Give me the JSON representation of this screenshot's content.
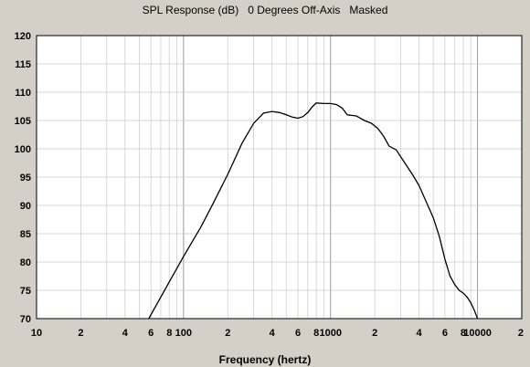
{
  "chart_data": {
    "type": "line",
    "title": "SPL Response (dB)   0 Degrees Off-Axis   Masked",
    "xlabel": "Frequency (hertz)",
    "ylabel": "",
    "x_scale": "log",
    "xlim": [
      10,
      20000
    ],
    "ylim": [
      70,
      120
    ],
    "grid": true,
    "y_ticks": [
      "120",
      "115",
      "110",
      "105",
      "100",
      "95",
      "90",
      "85",
      "80",
      "75",
      "70"
    ],
    "x_ticks": [
      {
        "value": 10,
        "label": "10"
      },
      {
        "value": 20,
        "label": "2"
      },
      {
        "value": 40,
        "label": "4"
      },
      {
        "value": 60,
        "label": "6"
      },
      {
        "value": 80,
        "label": "8"
      },
      {
        "value": 100,
        "label": "100"
      },
      {
        "value": 200,
        "label": "2"
      },
      {
        "value": 400,
        "label": "4"
      },
      {
        "value": 600,
        "label": "6"
      },
      {
        "value": 800,
        "label": "8"
      },
      {
        "value": 1000,
        "label": "1000"
      },
      {
        "value": 2000,
        "label": "2"
      },
      {
        "value": 4000,
        "label": "4"
      },
      {
        "value": 6000,
        "label": "6"
      },
      {
        "value": 8000,
        "label": "8"
      },
      {
        "value": 10000,
        "label": "10000"
      },
      {
        "value": 20000,
        "label": "2"
      }
    ],
    "series": [
      {
        "x": [
          58,
          80,
          100,
          130,
          160,
          200,
          250,
          300,
          350,
          400,
          450,
          500,
          550,
          600,
          650,
          700,
          750,
          800,
          900,
          1000,
          1100,
          1200,
          1300,
          1500,
          1700,
          1900,
          2100,
          2300,
          2500,
          2800,
          3200,
          3600,
          4000,
          4500,
          5000,
          5500,
          6000,
          6500,
          7000,
          7500,
          8000,
          8500,
          9000,
          9500,
          10000
        ],
        "y": [
          70,
          76.5,
          81,
          86,
          90.5,
          95.5,
          101,
          104.5,
          106.3,
          106.6,
          106.4,
          106,
          105.6,
          105.4,
          105.7,
          106.4,
          107.4,
          108.1,
          108,
          108,
          107.8,
          107.2,
          106,
          105.8,
          105,
          104.5,
          103.6,
          102.2,
          100.5,
          99.8,
          97.5,
          95.5,
          93.5,
          90.5,
          87.8,
          84.5,
          80.5,
          77.5,
          76,
          75,
          74.5,
          73.8,
          72.8,
          71.5,
          70
        ]
      }
    ]
  }
}
